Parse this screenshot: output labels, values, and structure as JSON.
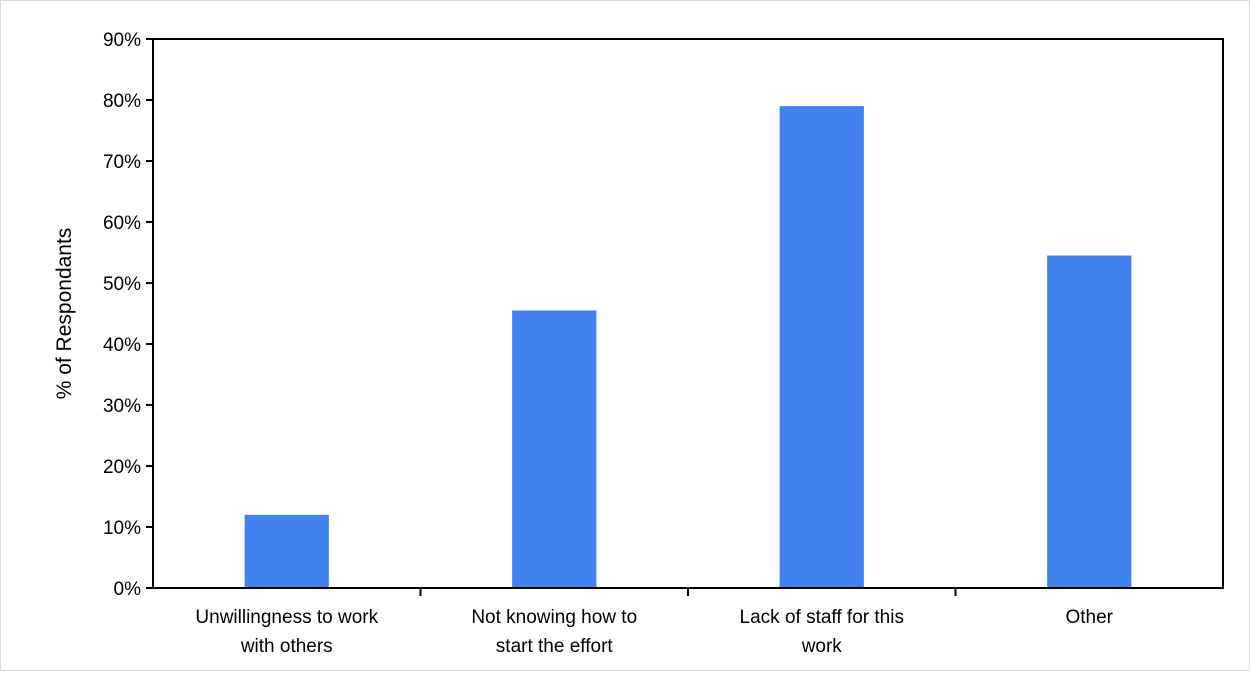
{
  "chart_data": {
    "type": "bar",
    "title": "",
    "xlabel": "",
    "ylabel": "% of Respondants",
    "categories": [
      [
        "Unwillingness to work",
        "with others"
      ],
      [
        "Not knowing how to",
        "start the effort"
      ],
      [
        "Lack of staff for this",
        "work"
      ],
      [
        "Other"
      ]
    ],
    "values": [
      12,
      45.5,
      79,
      54.5
    ],
    "ylim": [
      0,
      90
    ],
    "yticks": [
      0,
      10,
      20,
      30,
      40,
      50,
      60,
      70,
      80,
      90
    ],
    "ytick_labels": [
      "0%",
      "10%",
      "20%",
      "30%",
      "40%",
      "50%",
      "60%",
      "70%",
      "80%",
      "90%"
    ],
    "grid": false,
    "legend": "none",
    "bar_color": "#4383F0",
    "axis_color": "#000000"
  }
}
